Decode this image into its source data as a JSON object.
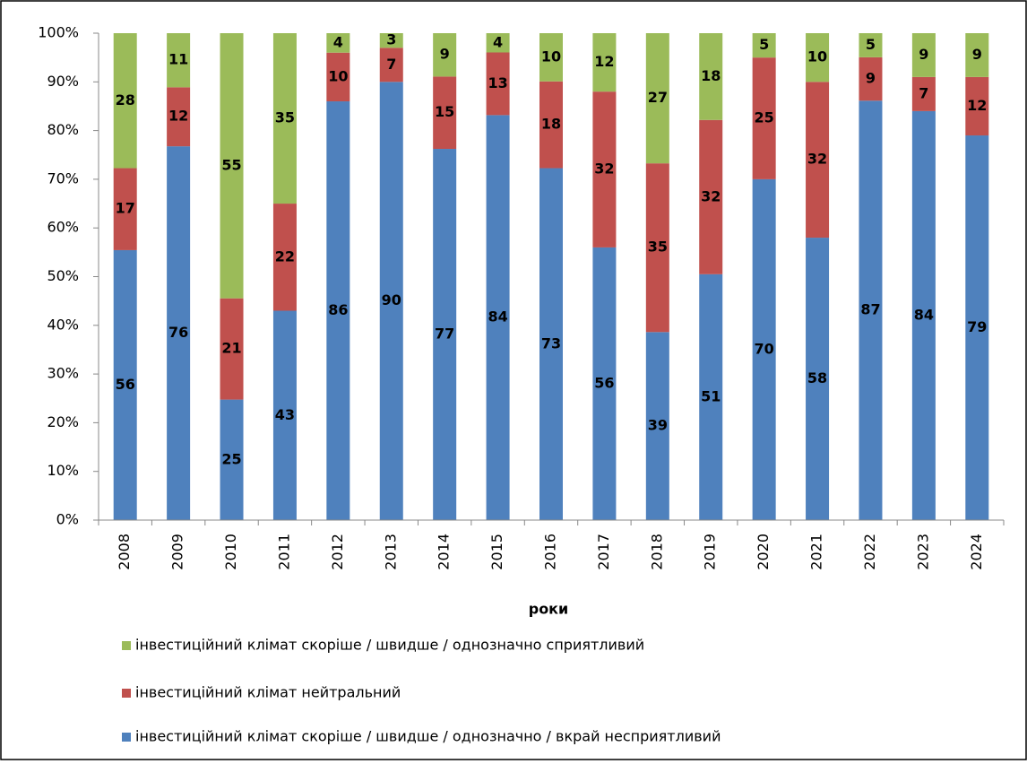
{
  "chart_data": {
    "type": "bar",
    "stacking": "percent",
    "x_label": "роки",
    "categories": [
      "2008",
      "2009",
      "2010",
      "2011",
      "2012",
      "2013",
      "2014",
      "2015",
      "2016",
      "2017",
      "2018",
      "2019",
      "2020",
      "2021",
      "2022",
      "2023",
      "2024"
    ],
    "series": [
      {
        "name": "інвестиційний клімат скоріше / швидше  / однозначно / вкрай несприятливий",
        "color": "#4f81bd",
        "values": [
          56,
          76,
          25,
          43,
          86,
          90,
          77,
          84,
          73,
          56,
          39,
          51,
          70,
          58,
          87,
          84,
          79
        ]
      },
      {
        "name": "інвестиційний клімат нейтральний",
        "color": "#c0504d",
        "values": [
          17,
          12,
          21,
          22,
          10,
          7,
          15,
          13,
          18,
          32,
          35,
          32,
          25,
          32,
          9,
          7,
          12
        ]
      },
      {
        "name": "інвестиційний клімат скоріше / швидше  / однозначно сприятливий",
        "color": "#9bbb59",
        "values": [
          28,
          11,
          55,
          35,
          4,
          3,
          9,
          4,
          10,
          12,
          27,
          18,
          5,
          10,
          5,
          9,
          9
        ]
      }
    ],
    "ylim": [
      0,
      100
    ],
    "yticks": [
      {
        "value": 0,
        "label": "0%"
      },
      {
        "value": 10,
        "label": "10%"
      },
      {
        "value": 20,
        "label": "20%"
      },
      {
        "value": 30,
        "label": "30%"
      },
      {
        "value": 40,
        "label": "40%"
      },
      {
        "value": 50,
        "label": "50%"
      },
      {
        "value": 60,
        "label": "60%"
      },
      {
        "value": 70,
        "label": "70%"
      },
      {
        "value": 80,
        "label": "80%"
      },
      {
        "value": 90,
        "label": "90%"
      },
      {
        "value": 100,
        "label": "100%"
      }
    ],
    "grid": false
  }
}
